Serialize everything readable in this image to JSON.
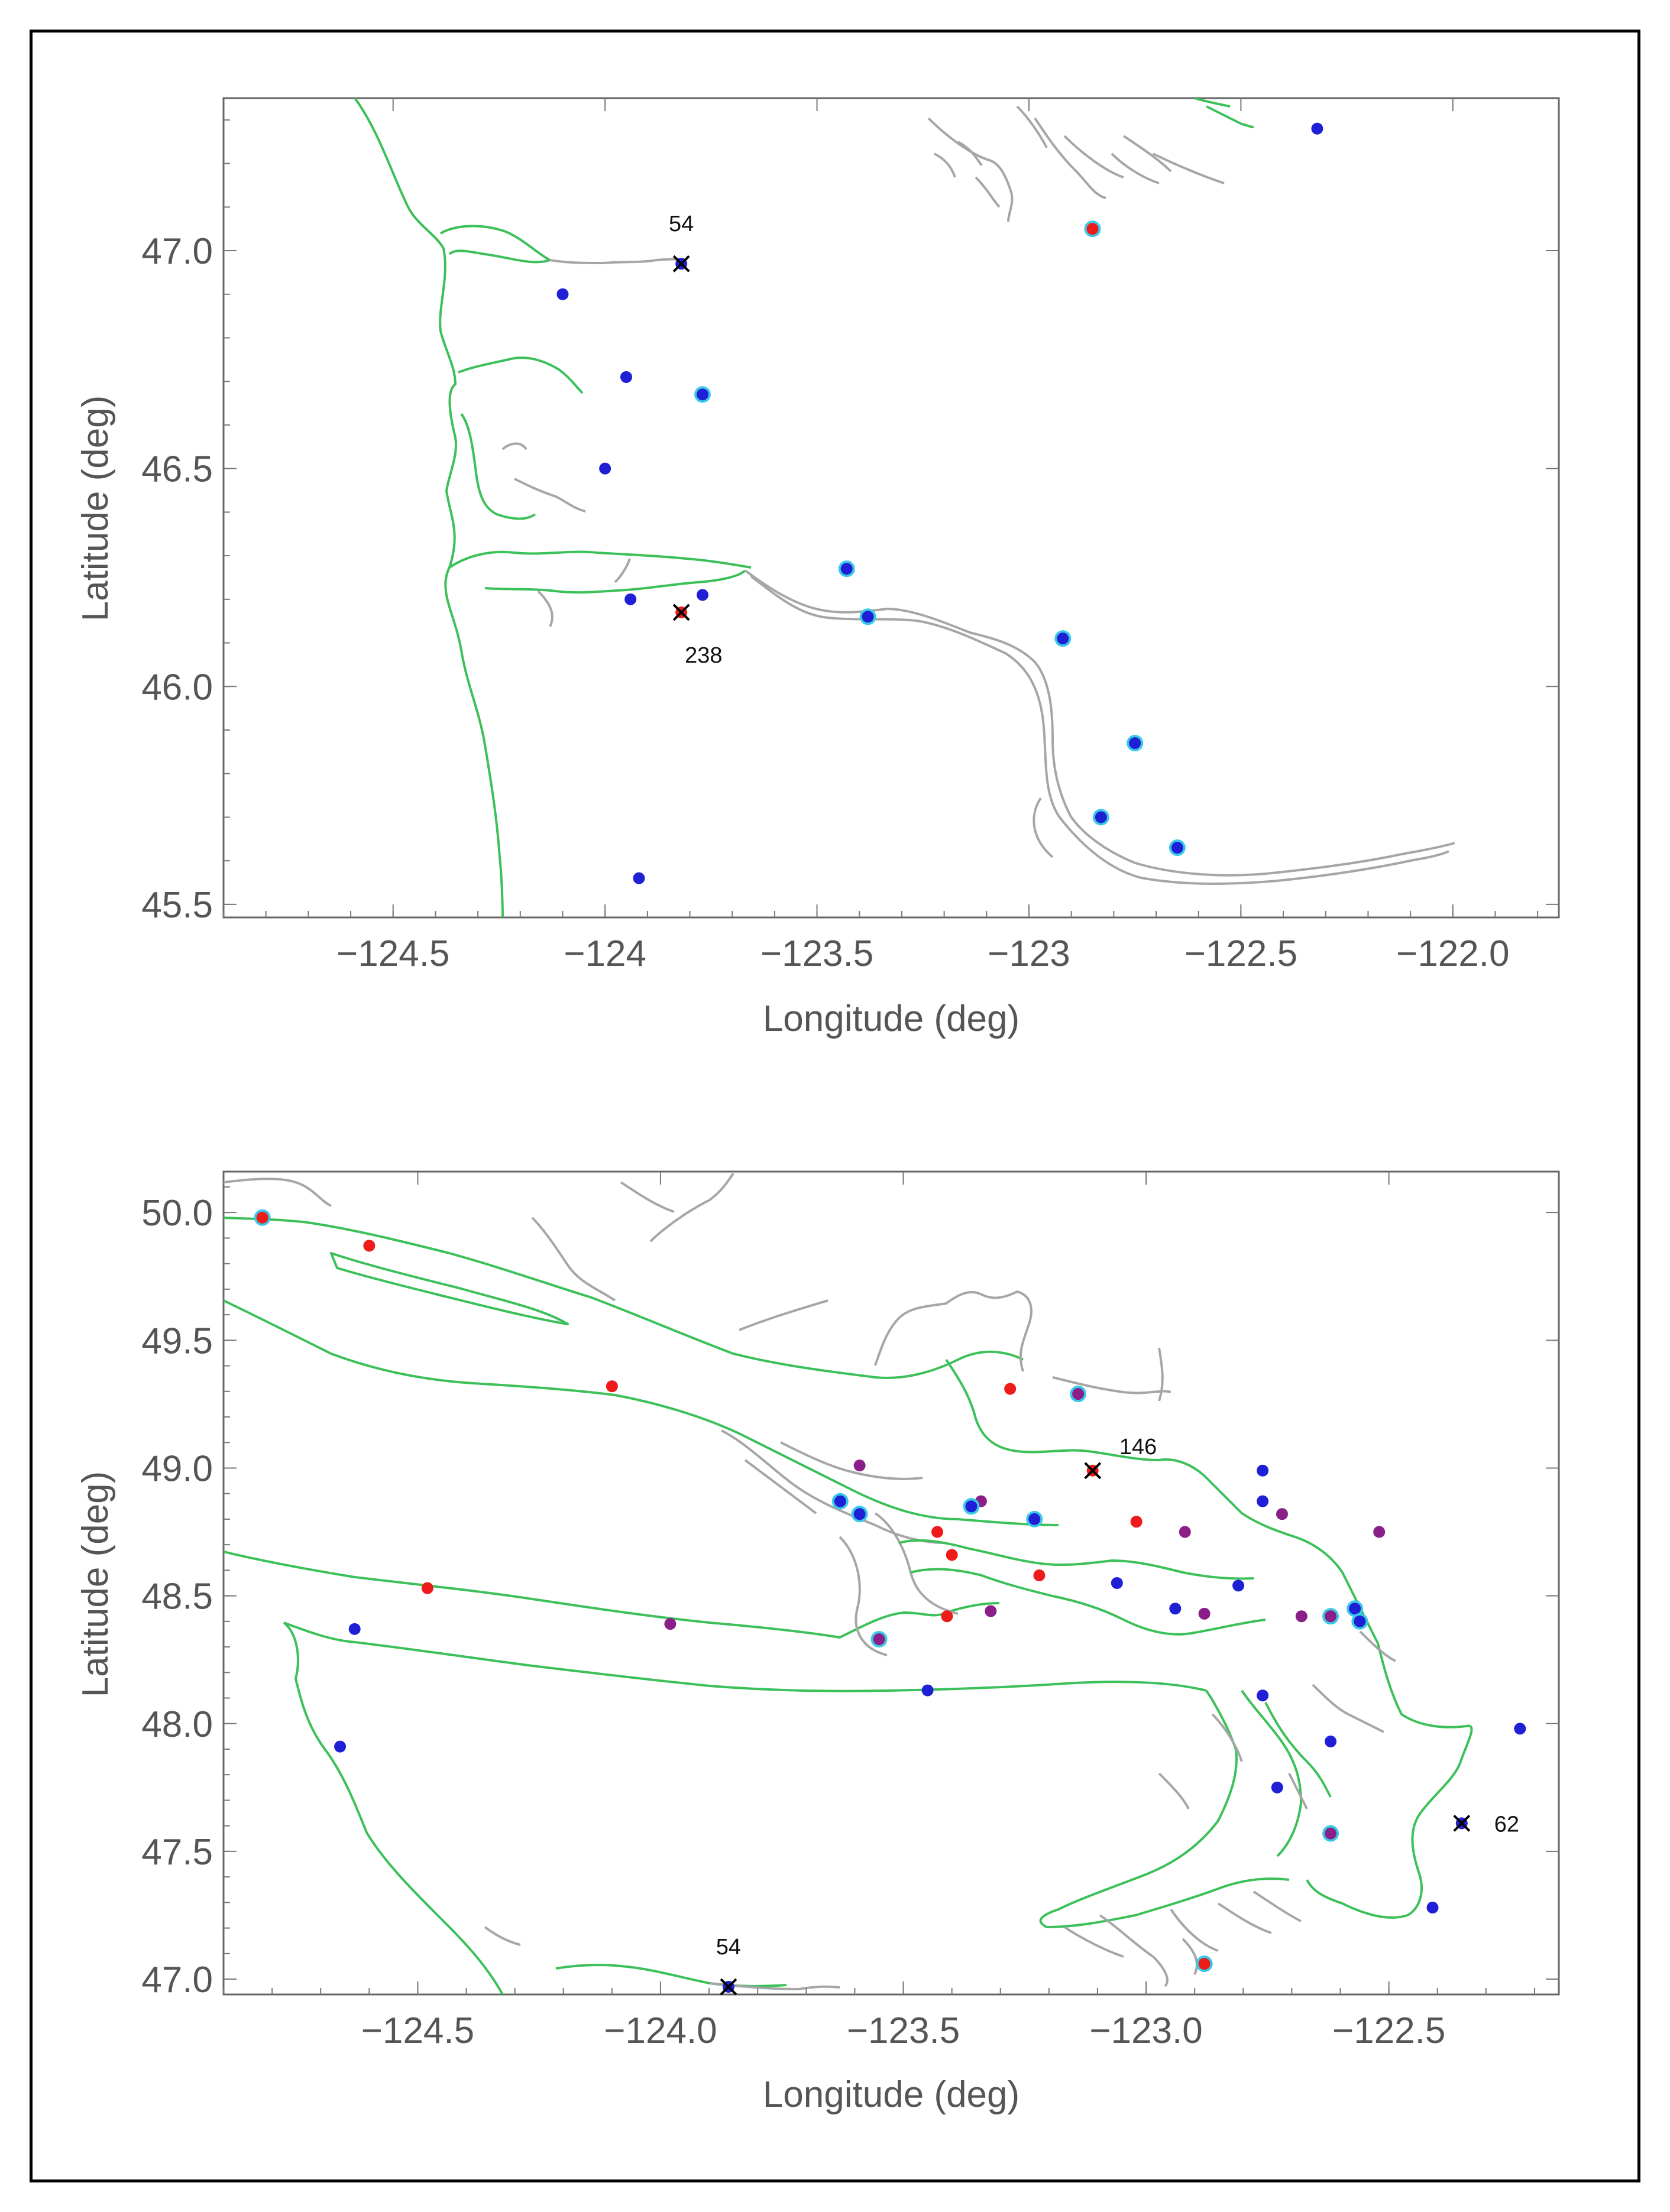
{
  "colors": {
    "blue": "#1f1fd6",
    "red": "#ee1b1b",
    "purple": "#8a1f8a",
    "halo": "#39c8e6",
    "green_shore": "#3cc05a",
    "gray_shore": "#a6a6a6"
  },
  "chart_data": [
    {
      "type": "scatter",
      "title": "",
      "xlabel": "Longitude (deg)",
      "ylabel": "Latitude (deg)",
      "xlim": [
        -124.9,
        -121.75
      ],
      "ylim": [
        45.47,
        47.35
      ],
      "xticks": [
        -124.5,
        -124.0,
        -123.5,
        -123.0,
        -122.5,
        -122.0
      ],
      "xtick_labels": [
        "−124.5",
        "−124",
        "−123.5",
        "−123",
        "−122.5",
        "−122.0"
      ],
      "yticks": [
        45.5,
        46.0,
        46.5,
        47.0
      ],
      "ytick_labels": [
        "45.5",
        "46.0",
        "46.5",
        "47.0"
      ],
      "points": [
        {
          "lon": -124.1,
          "lat": 46.9,
          "color": "blue",
          "halo": false
        },
        {
          "lon": -123.95,
          "lat": 46.71,
          "color": "blue",
          "halo": false
        },
        {
          "lon": -123.77,
          "lat": 46.67,
          "color": "blue",
          "halo": true
        },
        {
          "lon": -124.0,
          "lat": 46.5,
          "color": "blue",
          "halo": false
        },
        {
          "lon": -123.94,
          "lat": 46.2,
          "color": "blue",
          "halo": false
        },
        {
          "lon": -123.77,
          "lat": 46.21,
          "color": "blue",
          "halo": false
        },
        {
          "lon": -123.43,
          "lat": 46.27,
          "color": "blue",
          "halo": true
        },
        {
          "lon": -123.38,
          "lat": 46.16,
          "color": "blue",
          "halo": true
        },
        {
          "lon": -122.92,
          "lat": 46.11,
          "color": "blue",
          "halo": true
        },
        {
          "lon": -122.75,
          "lat": 45.87,
          "color": "blue",
          "halo": true
        },
        {
          "lon": -122.83,
          "lat": 45.7,
          "color": "blue",
          "halo": true
        },
        {
          "lon": -122.65,
          "lat": 45.63,
          "color": "blue",
          "halo": true
        },
        {
          "lon": -123.92,
          "lat": 45.56,
          "color": "blue",
          "halo": false
        },
        {
          "lon": -122.32,
          "lat": 47.28,
          "color": "blue",
          "halo": false
        },
        {
          "lon": -122.85,
          "lat": 47.05,
          "color": "red",
          "halo": true
        }
      ],
      "stations": [
        {
          "lon": -123.82,
          "lat": 46.97,
          "label": "54",
          "color": "blue",
          "label_pos": "above"
        },
        {
          "lon": -123.82,
          "lat": 46.17,
          "label": "238",
          "color": "red",
          "label_pos": "below-right"
        }
      ]
    },
    {
      "type": "scatter",
      "title": "",
      "xlabel": "Longitude (deg)",
      "ylabel": "Latitude (deg)",
      "xlim": [
        -124.9,
        -122.15
      ],
      "ylim": [
        46.94,
        50.16
      ],
      "xticks": [
        -124.5,
        -124.0,
        -123.5,
        -123.0,
        -122.5
      ],
      "xtick_labels": [
        "−124.5",
        "−124.0",
        "−123.5",
        "−123.0",
        "−122.5"
      ],
      "yticks": [
        47.0,
        47.5,
        48.0,
        48.5,
        49.0,
        49.5,
        50.0
      ],
      "ytick_labels": [
        "47.0",
        "47.5",
        "48.0",
        "48.5",
        "49.0",
        "49.5",
        "50.0"
      ],
      "points": [
        {
          "lon": -124.82,
          "lat": 49.98,
          "color": "red",
          "halo": true
        },
        {
          "lon": -124.6,
          "lat": 49.87,
          "color": "red",
          "halo": false
        },
        {
          "lon": -124.1,
          "lat": 49.32,
          "color": "red",
          "halo": false
        },
        {
          "lon": -124.48,
          "lat": 48.53,
          "color": "red",
          "halo": false
        },
        {
          "lon": -123.28,
          "lat": 49.31,
          "color": "red",
          "halo": false
        },
        {
          "lon": -123.14,
          "lat": 49.29,
          "color": "purple",
          "halo": true
        },
        {
          "lon": -123.59,
          "lat": 49.01,
          "color": "purple",
          "halo": false
        },
        {
          "lon": -123.63,
          "lat": 48.87,
          "color": "blue",
          "halo": true
        },
        {
          "lon": -123.59,
          "lat": 48.82,
          "color": "blue",
          "halo": true
        },
        {
          "lon": -123.34,
          "lat": 48.87,
          "color": "purple",
          "halo": false
        },
        {
          "lon": -123.36,
          "lat": 48.85,
          "color": "blue",
          "halo": true
        },
        {
          "lon": -123.23,
          "lat": 48.8,
          "color": "blue",
          "halo": true
        },
        {
          "lon": -123.43,
          "lat": 48.75,
          "color": "red",
          "halo": false
        },
        {
          "lon": -123.4,
          "lat": 48.66,
          "color": "red",
          "halo": false
        },
        {
          "lon": -123.22,
          "lat": 48.58,
          "color": "red",
          "halo": false
        },
        {
          "lon": -123.02,
          "lat": 48.79,
          "color": "red",
          "halo": false
        },
        {
          "lon": -122.92,
          "lat": 48.75,
          "color": "purple",
          "halo": false
        },
        {
          "lon": -122.76,
          "lat": 48.99,
          "color": "blue",
          "halo": false
        },
        {
          "lon": -122.76,
          "lat": 48.87,
          "color": "blue",
          "halo": false
        },
        {
          "lon": -122.72,
          "lat": 48.82,
          "color": "purple",
          "halo": false
        },
        {
          "lon": -122.52,
          "lat": 48.75,
          "color": "purple",
          "halo": false
        },
        {
          "lon": -123.06,
          "lat": 48.55,
          "color": "blue",
          "halo": false
        },
        {
          "lon": -122.94,
          "lat": 48.45,
          "color": "blue",
          "halo": false
        },
        {
          "lon": -122.88,
          "lat": 48.43,
          "color": "purple",
          "halo": false
        },
        {
          "lon": -122.81,
          "lat": 48.54,
          "color": "blue",
          "halo": false
        },
        {
          "lon": -122.68,
          "lat": 48.42,
          "color": "purple",
          "halo": false
        },
        {
          "lon": -122.62,
          "lat": 48.42,
          "color": "purple",
          "halo": true
        },
        {
          "lon": -122.57,
          "lat": 48.45,
          "color": "blue",
          "halo": true
        },
        {
          "lon": -122.56,
          "lat": 48.4,
          "color": "blue",
          "halo": true
        },
        {
          "lon": -123.98,
          "lat": 48.39,
          "color": "purple",
          "halo": false
        },
        {
          "lon": -123.55,
          "lat": 48.33,
          "color": "purple",
          "halo": true
        },
        {
          "lon": -123.41,
          "lat": 48.42,
          "color": "red",
          "halo": false
        },
        {
          "lon": -123.32,
          "lat": 48.44,
          "color": "purple",
          "halo": false
        },
        {
          "lon": -124.63,
          "lat": 48.37,
          "color": "blue",
          "halo": false
        },
        {
          "lon": -123.45,
          "lat": 48.13,
          "color": "blue",
          "halo": false
        },
        {
          "lon": -122.76,
          "lat": 48.11,
          "color": "blue",
          "halo": false
        },
        {
          "lon": -124.66,
          "lat": 47.91,
          "color": "blue",
          "halo": false
        },
        {
          "lon": -122.62,
          "lat": 47.93,
          "color": "blue",
          "halo": false
        },
        {
          "lon": -122.23,
          "lat": 47.98,
          "color": "blue",
          "halo": false
        },
        {
          "lon": -122.73,
          "lat": 47.75,
          "color": "blue",
          "halo": false
        },
        {
          "lon": -122.62,
          "lat": 47.57,
          "color": "purple",
          "halo": true
        },
        {
          "lon": -122.41,
          "lat": 47.28,
          "color": "blue",
          "halo": false
        },
        {
          "lon": -122.88,
          "lat": 47.06,
          "color": "red",
          "halo": true
        }
      ],
      "stations": [
        {
          "lon": -123.11,
          "lat": 48.99,
          "label": "146",
          "color": "red",
          "label_pos": "above-right"
        },
        {
          "lon": -122.35,
          "lat": 47.61,
          "label": "62",
          "color": "blue",
          "label_pos": "right"
        },
        {
          "lon": -123.86,
          "lat": 46.97,
          "label": "54",
          "color": "blue",
          "label_pos": "above"
        }
      ]
    }
  ]
}
